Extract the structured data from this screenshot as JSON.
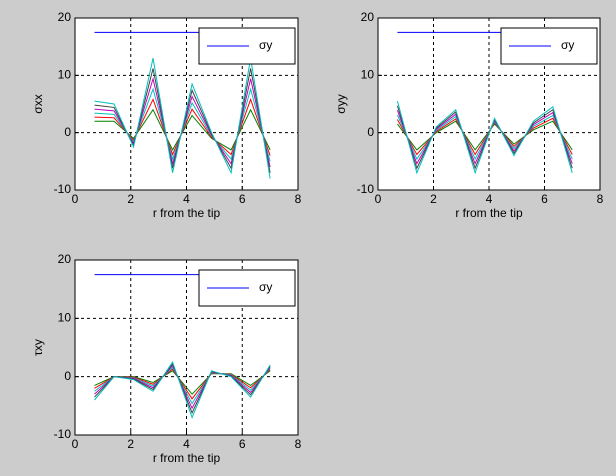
{
  "chart_data": [
    {
      "type": "line",
      "xlabel": "r from the tip",
      "ylabel": "σxx",
      "x": [
        0.7,
        1.4,
        2.1,
        2.8,
        3.5,
        4.2,
        4.9,
        5.6,
        6.3,
        7.0
      ],
      "xlim": [
        0,
        8
      ],
      "ylim": [
        -10,
        20
      ],
      "xticks": [
        0,
        2,
        4,
        6,
        8
      ],
      "yticks": [
        -10,
        0,
        10,
        20
      ],
      "grid": true,
      "legend": "northeast",
      "series": [
        {
          "name": "σy",
          "color": "#0000ff",
          "values": [
            17.5,
            17.5,
            17.5,
            17.5,
            17.5,
            17.5,
            17.5,
            17.5,
            17.5,
            17.5
          ]
        },
        {
          "color": "#008000",
          "values": [
            2,
            2,
            -1,
            4,
            -3,
            3,
            -1,
            -3,
            4,
            -3
          ]
        },
        {
          "color": "#ff0000",
          "values": [
            2.7,
            2.6,
            -1.3,
            5.8,
            -3.8,
            4.1,
            -0.8,
            -3.8,
            5.8,
            -4
          ]
        },
        {
          "color": "#00bfbf",
          "values": [
            3.4,
            3.2,
            -1.6,
            7.6,
            -4.6,
            5.2,
            -0.6,
            -4.6,
            7.6,
            -5
          ]
        },
        {
          "color": "#bf00bf",
          "values": [
            4.1,
            3.8,
            -1.9,
            9.4,
            -5.4,
            6.3,
            -0.4,
            -5.4,
            9.4,
            -6
          ]
        },
        {
          "color": "#404040",
          "values": [
            4.8,
            4.4,
            -2.2,
            11.2,
            -6.2,
            7.4,
            -0.2,
            -6.2,
            11.2,
            -7
          ]
        },
        {
          "color": "#00bfbf",
          "values": [
            5.5,
            5,
            -2.5,
            13,
            -7,
            8.5,
            0,
            -7,
            13,
            -8
          ]
        }
      ]
    },
    {
      "type": "line",
      "xlabel": "r from the tip",
      "ylabel": "σyy",
      "x": [
        0.7,
        1.4,
        2.1,
        2.8,
        3.5,
        4.2,
        4.9,
        5.6,
        6.3,
        7.0
      ],
      "xlim": [
        0,
        8
      ],
      "ylim": [
        -10,
        20
      ],
      "xticks": [
        0,
        2,
        4,
        6,
        8
      ],
      "yticks": [
        -10,
        0,
        10,
        20
      ],
      "grid": true,
      "legend": "northeast",
      "series": [
        {
          "name": "σy",
          "color": "#0000ff",
          "values": [
            17.5,
            17.5,
            17.5,
            17.5,
            17.5,
            17.5,
            17.5,
            17.5,
            17.5,
            17.5
          ]
        },
        {
          "color": "#008000",
          "values": [
            1.5,
            -3,
            0,
            2,
            -3,
            1.5,
            -2,
            0.5,
            2,
            -3
          ]
        },
        {
          "color": "#ff0000",
          "values": [
            2.3,
            -3.8,
            0.2,
            2.4,
            -3.8,
            1.7,
            -2.4,
            0.8,
            2.5,
            -3.8
          ]
        },
        {
          "color": "#00bfbf",
          "values": [
            3.1,
            -4.6,
            0.4,
            2.8,
            -4.6,
            1.9,
            -2.8,
            1.1,
            3,
            -4.6
          ]
        },
        {
          "color": "#bf00bf",
          "values": [
            3.9,
            -5.4,
            0.6,
            3.2,
            -5.4,
            2.1,
            -3.2,
            1.4,
            3.5,
            -5.4
          ]
        },
        {
          "color": "#404040",
          "values": [
            4.7,
            -6.2,
            0.8,
            3.6,
            -6.2,
            2.3,
            -3.6,
            1.7,
            4,
            -6.2
          ]
        },
        {
          "color": "#00bfbf",
          "values": [
            5.5,
            -7,
            1,
            4,
            -7,
            2.5,
            -4,
            2,
            4.5,
            -7
          ]
        }
      ]
    },
    {
      "type": "line",
      "xlabel": "r from the tip",
      "ylabel": "τxy",
      "x": [
        0.7,
        1.4,
        2.1,
        2.8,
        3.5,
        4.2,
        4.9,
        5.6,
        6.3,
        7.0
      ],
      "xlim": [
        0,
        8
      ],
      "ylim": [
        -10,
        20
      ],
      "xticks": [
        0,
        2,
        4,
        6,
        8
      ],
      "yticks": [
        -10,
        0,
        10,
        20
      ],
      "grid": true,
      "legend": "northeast",
      "series": [
        {
          "name": "σy",
          "color": "#0000ff",
          "values": [
            17.5,
            17.5,
            17.5,
            17.5,
            17.5,
            17.5,
            17.5,
            17.5,
            17.5,
            17.5
          ]
        },
        {
          "color": "#008000",
          "values": [
            -1.5,
            0,
            0,
            -1,
            1,
            -3,
            0.5,
            0.5,
            -1.5,
            1
          ]
        },
        {
          "color": "#ff0000",
          "values": [
            -2,
            0,
            -0.1,
            -1.3,
            1.3,
            -3.8,
            0.6,
            0.4,
            -1.9,
            1.2
          ]
        },
        {
          "color": "#00bfbf",
          "values": [
            -2.5,
            0,
            -0.2,
            -1.6,
            1.6,
            -4.6,
            0.7,
            0.3,
            -2.3,
            1.4
          ]
        },
        {
          "color": "#bf00bf",
          "values": [
            -3,
            0,
            -0.3,
            -1.9,
            1.9,
            -5.4,
            0.8,
            0.2,
            -2.7,
            1.6
          ]
        },
        {
          "color": "#404040",
          "values": [
            -3.5,
            0,
            -0.4,
            -2.2,
            2.2,
            -6.2,
            0.9,
            0.1,
            -3.1,
            1.8
          ]
        },
        {
          "color": "#00bfbf",
          "values": [
            -4,
            0,
            -0.5,
            -2.5,
            2.5,
            -7,
            1,
            0,
            -3.5,
            2
          ]
        }
      ]
    }
  ]
}
